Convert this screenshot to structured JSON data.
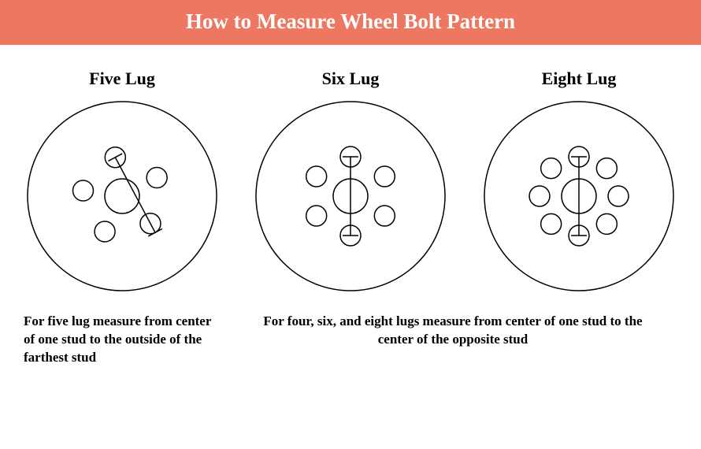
{
  "header": {
    "title": "How to Measure Wheel Bolt Pattern",
    "bg_color": "#ee7762",
    "text_color": "#ffffff",
    "title_fontsize": 27
  },
  "panels": {
    "title_fontsize": 22,
    "five": {
      "title": "Five Lug"
    },
    "six": {
      "title": "Six Lug"
    },
    "eight": {
      "title": "Eight Lug"
    }
  },
  "captions": {
    "fontsize": 17,
    "five": "For five lug measure from center of one stud to the outside of the farthest stud",
    "even": "For four, six, and eight lugs measure from center of one stud to the center of the opposite stud"
  },
  "diagram": {
    "outer_radius": 120,
    "hub_radius": 22,
    "lug_radius": 13,
    "lug_orbit": 50,
    "stroke": "#000000",
    "stroke_width": 1.5,
    "tick_len": 20,
    "five": {
      "n": 5,
      "rotation_deg": -100,
      "measure_from_idx": 0,
      "measure_to_idx": 2,
      "to_outside": true
    },
    "six": {
      "n": 6,
      "rotation_deg": -90,
      "measure_from_idx": 0,
      "measure_to_idx": 3,
      "to_outside": false
    },
    "eight": {
      "n": 8,
      "rotation_deg": -90,
      "measure_from_idx": 0,
      "measure_to_idx": 4,
      "to_outside": false
    }
  }
}
